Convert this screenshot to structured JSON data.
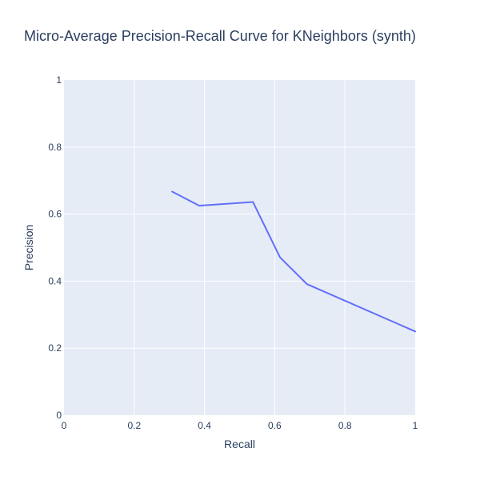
{
  "chart_data": {
    "type": "line",
    "title": "Micro-Average Precision-Recall Curve for KNeighbors (synth)",
    "xlabel": "Recall",
    "ylabel": "Precision",
    "xlim": [
      0,
      1
    ],
    "ylim": [
      0,
      1
    ],
    "xticks": [
      "0",
      "0.2",
      "0.4",
      "0.6",
      "0.8",
      "1"
    ],
    "yticks": [
      "0",
      "0.2",
      "0.4",
      "0.6",
      "0.8",
      "1"
    ],
    "grid": true,
    "legend": "none",
    "series": [
      {
        "x": [
          0.308,
          0.385,
          0.538,
          0.615,
          0.692,
          1.0
        ],
        "y": [
          0.667,
          0.625,
          0.636,
          0.471,
          0.391,
          0.25
        ],
        "color": "#636efa"
      }
    ]
  },
  "colors": {
    "plot_background": "#e5ecf6",
    "gridline": "#ffffff",
    "text": "#2a3f5f"
  }
}
